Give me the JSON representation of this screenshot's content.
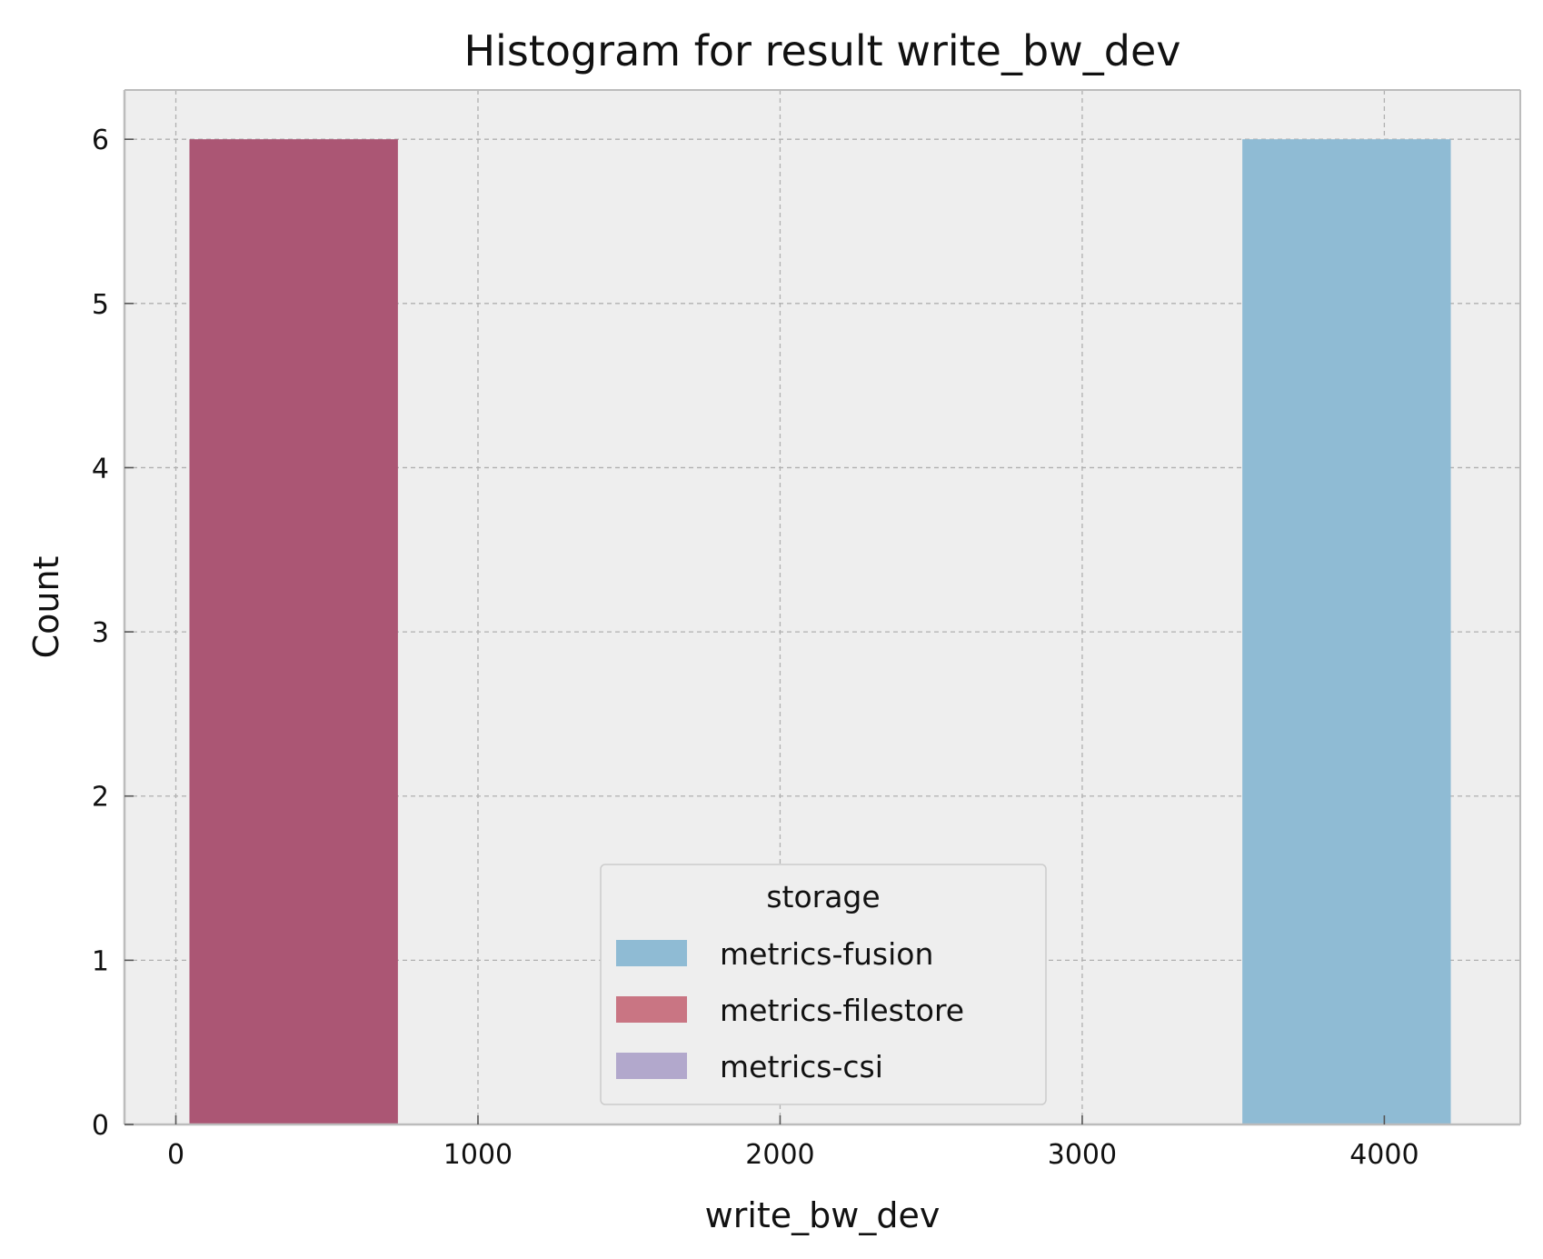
{
  "chart_data": {
    "type": "bar",
    "title": "Histogram for result write_bw_dev",
    "xlabel": "write_bw_dev",
    "ylabel": "Count",
    "xlim": [
      -170,
      4450
    ],
    "ylim": [
      0,
      6.3
    ],
    "xticks": [
      0,
      1000,
      2000,
      3000,
      4000
    ],
    "yticks": [
      0,
      1,
      2,
      3,
      4,
      5,
      6
    ],
    "grid": true,
    "legend": {
      "title": "storage",
      "position": "lower-center"
    },
    "series": [
      {
        "name": "metrics-fusion",
        "color": "#8fbbd4",
        "bins": [
          {
            "x0": 3530,
            "x1": 4220,
            "count": 6
          }
        ]
      },
      {
        "name": "metrics-filestore",
        "color": "#c97583",
        "bins": [
          {
            "x0": 45,
            "x1": 735,
            "count": 6
          }
        ]
      },
      {
        "name": "metrics-csi",
        "color": "#b2a8cc",
        "bins": []
      }
    ],
    "overlap_color": "#ab5674"
  }
}
